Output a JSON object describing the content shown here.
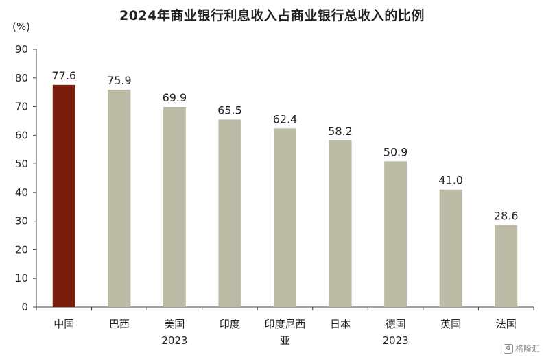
{
  "chart_data": {
    "type": "bar",
    "title": "2024年商业银行利息收入占商业银行总收入的比例",
    "unit": "(%)",
    "categories": [
      "中国",
      "巴西",
      "美国\n2023",
      "印度",
      "印度尼西\n亚",
      "日本",
      "德国\n2023",
      "英国",
      "法国"
    ],
    "values": [
      77.6,
      75.9,
      69.9,
      65.5,
      62.4,
      58.2,
      50.9,
      41.0,
      28.6
    ],
    "value_labels": [
      "77.6",
      "75.9",
      "69.9",
      "65.5",
      "62.4",
      "58.2",
      "50.9",
      "41.0",
      "28.6"
    ],
    "ylim": [
      0,
      90
    ],
    "yticks": [
      0,
      10,
      20,
      30,
      40,
      50,
      60,
      70,
      80,
      90
    ],
    "highlight_index": 0,
    "colors": {
      "highlight": "#7B1D0C",
      "default": "#BDBAA6",
      "axis": "#444444"
    },
    "grid": false,
    "legend": "none"
  },
  "watermark": {
    "logo_icon": "gelonghui-logo-icon",
    "text": "格隆汇"
  }
}
